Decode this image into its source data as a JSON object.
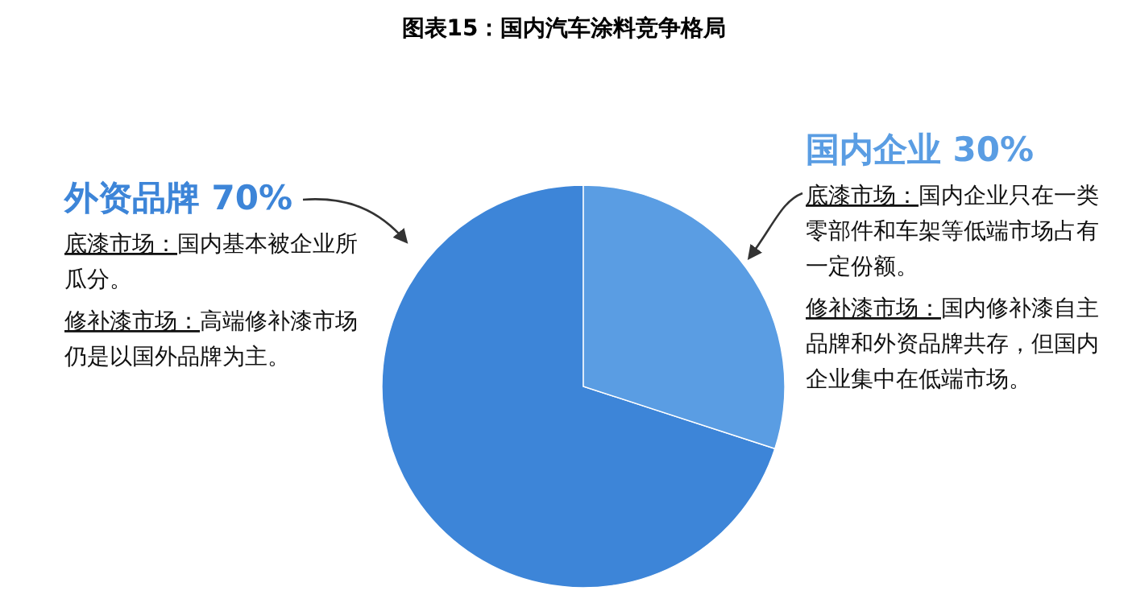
{
  "chart_data": {
    "type": "pie",
    "title": "图表15：国内汽车涂料竞争格局",
    "categories": [
      "外资品牌 70%",
      "国内企业 30%"
    ],
    "values": [
      70,
      30
    ],
    "colors": [
      "#3d85d8",
      "#5a9de3"
    ],
    "annotations": [
      "底漆市场：国内基本被企业所瓜分。",
      "修补漆市场：高端修补漆市场仍是以国外品牌为主。",
      "底漆市场：国内企业只在一类零部件和车架等低端市场占有一定份额。",
      "修补漆市场：国内修补漆自主品牌和外资品牌共存，但国内企业集中在低端市场。"
    ]
  }
}
